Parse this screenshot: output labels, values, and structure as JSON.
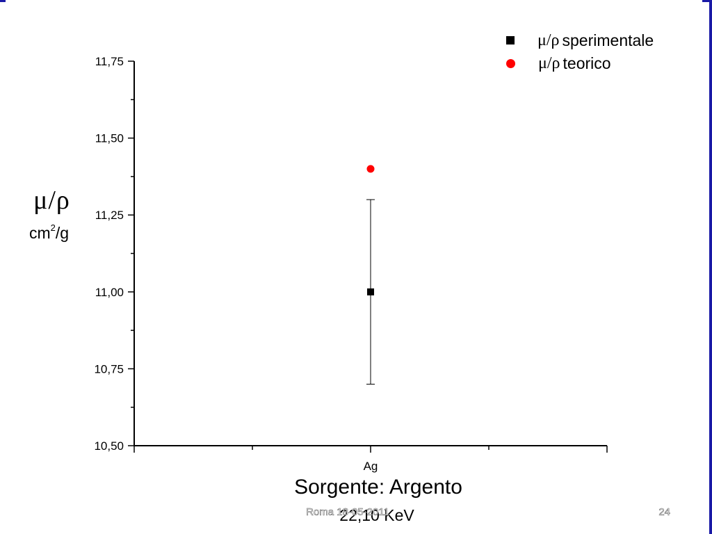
{
  "chart_data": {
    "type": "scatter",
    "categories": [
      "Ag"
    ],
    "ylim": [
      10.5,
      11.75
    ],
    "yticks": [
      "10,50",
      "10,75",
      "11,00",
      "11,25",
      "11,50",
      "11,75"
    ],
    "ytick_values": [
      10.5,
      10.75,
      11.0,
      11.25,
      11.5,
      11.75
    ],
    "ylabel_symbol": "μ/ρ",
    "ylabel_unit": "cm",
    "ylabel_unit_exp": "2",
    "ylabel_unit_suffix": "/g",
    "xlabel_line1": "Sorgente: Argento",
    "xlabel_line2": "22,10 KeV",
    "legend_position": "top-right",
    "series": [
      {
        "name": "μ/ρ sperimentale",
        "symbol": "μ/ρ",
        "label": "sperimentale",
        "marker": "square",
        "color": "#000000",
        "values": [
          11.0
        ],
        "error": [
          0.3
        ]
      },
      {
        "name": "μ/ρ teorico",
        "symbol": "μ/ρ",
        "label": "teorico",
        "marker": "circle",
        "color": "#ff0000",
        "values": [
          11.4
        ]
      }
    ]
  },
  "footer": {
    "date": "Roma 18-05-2011",
    "page": "24"
  },
  "colors": {
    "frame": "#1a1aa6"
  }
}
